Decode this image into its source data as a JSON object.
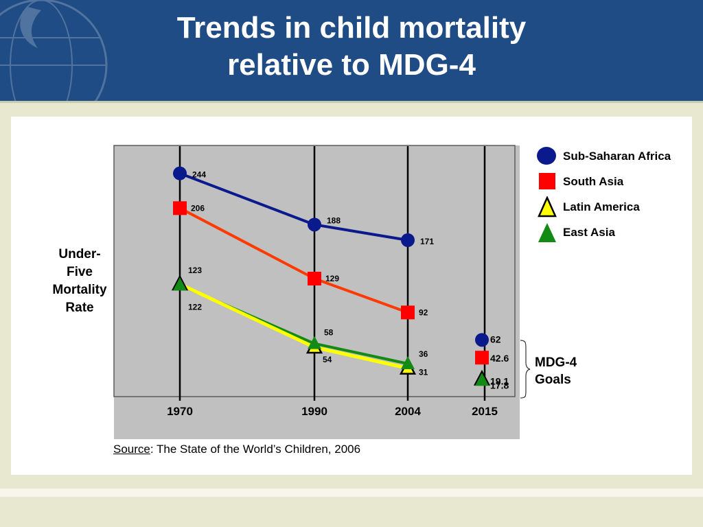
{
  "title": {
    "line1": "Trends in child mortality",
    "line2": "relative to MDG-4"
  },
  "y_axis_label": [
    "Under-",
    "Five",
    "Mortality",
    "Rate"
  ],
  "source": {
    "label": "Source",
    "text": ":  The State of the World’s Children, 2006"
  },
  "mdg_label": [
    "MDG-4",
    "Goals"
  ],
  "colors": {
    "header_bg": "#1f4c84",
    "plot_bg": "#c0c0c0",
    "sub_saharan_africa": "#0a1a8c",
    "south_asia": "#ff0000",
    "south_asia_line": "#ff3a00",
    "latin_america": "#ffff00",
    "east_asia": "#138a13"
  },
  "chart_data": {
    "type": "line",
    "x_categories": [
      "1970",
      "1990",
      "2004",
      "2015"
    ],
    "ylim": [
      0,
      270
    ],
    "grid": "vertical lines at each year",
    "legend_position": "right",
    "series": [
      {
        "name": "Sub-Saharan Africa",
        "marker": "circle",
        "points": [
          [
            "1970",
            244
          ],
          [
            "1990",
            188
          ],
          [
            "2004",
            171
          ]
        ],
        "labels": [
          "244",
          "188",
          "171"
        ],
        "goal": 62,
        "goal_label": "62"
      },
      {
        "name": "South Asia",
        "marker": "square",
        "points": [
          [
            "1970",
            206
          ],
          [
            "1990",
            129
          ],
          [
            "2004",
            92
          ]
        ],
        "labels": [
          "206",
          "129",
          "92"
        ],
        "goal": 42.6,
        "goal_label": "42.6"
      },
      {
        "name": "Latin America",
        "marker": "triangle-outlined",
        "points": [
          [
            "1970",
            123
          ],
          [
            "1990",
            54
          ],
          [
            "2004",
            31
          ]
        ],
        "labels": [
          "123",
          "54",
          "31"
        ],
        "goal": 19.1,
        "goal_label": "19.1"
      },
      {
        "name": "East Asia",
        "marker": "triangle",
        "points": [
          [
            "1970",
            122
          ],
          [
            "1990",
            58
          ],
          [
            "2004",
            36
          ]
        ],
        "labels": [
          "122",
          "58",
          "36"
        ],
        "goal": 17.8,
        "goal_label": "17.8"
      }
    ]
  }
}
